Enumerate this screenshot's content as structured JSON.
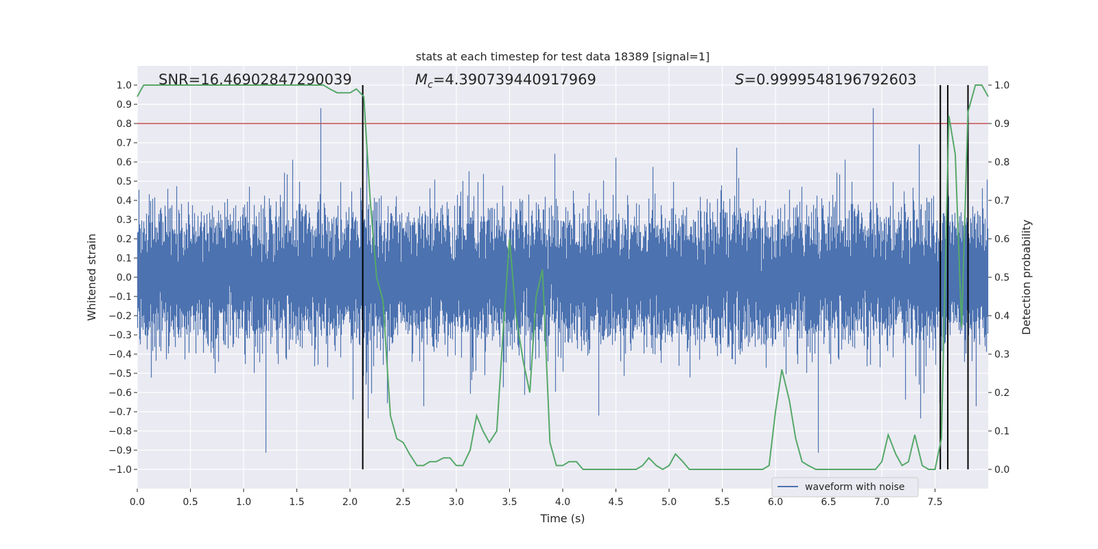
{
  "chart_data": {
    "type": "line",
    "title": "stats at each timestep for test data 18389 [signal=1]",
    "xlabel": "Time (s)",
    "ylabel_left": "Whitened strain",
    "ylabel_right": "Detection probability",
    "xlim": [
      0,
      8
    ],
    "ylim_left": [
      -1.1,
      1.1
    ],
    "ylim_right": [
      -0.05,
      1.05
    ],
    "x_ticks": [
      0.0,
      0.5,
      1.0,
      1.5,
      2.0,
      2.5,
      3.0,
      3.5,
      4.0,
      4.5,
      5.0,
      5.5,
      6.0,
      6.5,
      7.0,
      7.5
    ],
    "x_tick_labels": [
      "0.0",
      "0.5",
      "1.0",
      "1.5",
      "2.0",
      "2.5",
      "3.0",
      "3.5",
      "4.0",
      "4.5",
      "5.0",
      "5.5",
      "6.0",
      "6.5",
      "7.0",
      "7.5"
    ],
    "y_left_ticks": [
      1.0,
      0.9,
      0.8,
      0.7,
      0.6,
      0.5,
      0.4,
      0.3,
      0.2,
      0.1,
      0.0,
      -0.1,
      -0.2,
      -0.3,
      -0.4,
      -0.5,
      -0.6,
      -0.7,
      -0.8,
      -0.9,
      -1.0
    ],
    "y_left_tick_labels": [
      "1.0",
      "0.9",
      "0.8",
      "0.7",
      "0.6",
      "0.5",
      "0.4",
      "0.3",
      "0.2",
      "0.1",
      "0.0",
      "−0.1",
      "−0.2",
      "−0.3",
      "−0.4",
      "−0.5",
      "−0.6",
      "−0.7",
      "−0.8",
      "−0.9",
      "−1.0"
    ],
    "y_right_ticks": [
      1.0,
      0.9,
      0.8,
      0.7,
      0.6,
      0.5,
      0.4,
      0.3,
      0.2,
      0.1,
      0.0
    ],
    "y_right_tick_labels": [
      "1.0",
      "0.9",
      "0.8",
      "0.7",
      "0.6",
      "0.5",
      "0.4",
      "0.3",
      "0.2",
      "0.1",
      "0.0"
    ],
    "annotations": {
      "snr": "SNR=16.46902847290039",
      "mc_symbol": "M",
      "mc_subscript": "c",
      "mc_value": "=4.390739440917969",
      "s_symbol": "S",
      "s_value": "=0.9999548196792603"
    },
    "threshold_line": {
      "y": 0.8,
      "color": "#c44e52"
    },
    "vertical_lines": [
      2.12,
      7.55,
      7.62,
      7.81
    ],
    "waveform": {
      "name": "waveform with noise",
      "color": "#4c72b0",
      "sample_rate": 2048,
      "duration": 8,
      "description_envelope": "noise-like strain filling about -0.45..0.45 with spikes up to about 0.88 and down to -0.99"
    },
    "probability": {
      "name": "detection probability",
      "color": "#55a868",
      "x": [
        0.0,
        0.06,
        0.13,
        0.19,
        0.25,
        0.31,
        0.38,
        0.44,
        0.5,
        0.56,
        0.63,
        0.69,
        0.75,
        0.81,
        0.88,
        0.94,
        1.0,
        1.06,
        1.13,
        1.19,
        1.25,
        1.31,
        1.38,
        1.44,
        1.5,
        1.56,
        1.63,
        1.69,
        1.75,
        1.81,
        1.88,
        1.94,
        2.0,
        2.06,
        2.13,
        2.19,
        2.25,
        2.31,
        2.38,
        2.44,
        2.5,
        2.56,
        2.63,
        2.69,
        2.75,
        2.81,
        2.88,
        2.94,
        3.0,
        3.06,
        3.13,
        3.19,
        3.25,
        3.31,
        3.38,
        3.44,
        3.5,
        3.56,
        3.63,
        3.69,
        3.75,
        3.81,
        3.88,
        3.94,
        4.0,
        4.06,
        4.13,
        4.19,
        4.25,
        4.31,
        4.38,
        4.44,
        4.5,
        4.56,
        4.63,
        4.69,
        4.75,
        4.81,
        4.88,
        4.94,
        5.0,
        5.06,
        5.13,
        5.19,
        5.25,
        5.31,
        5.38,
        5.44,
        5.5,
        5.56,
        5.63,
        5.69,
        5.75,
        5.81,
        5.88,
        5.94,
        6.0,
        6.06,
        6.13,
        6.19,
        6.25,
        6.31,
        6.38,
        6.44,
        6.5,
        6.56,
        6.63,
        6.69,
        6.75,
        6.81,
        6.88,
        6.94,
        7.0,
        7.06,
        7.13,
        7.19,
        7.25,
        7.31,
        7.38,
        7.44,
        7.5,
        7.56,
        7.63,
        7.69,
        7.75,
        7.81,
        7.88,
        7.94,
        8.0
      ],
      "y": [
        0.97,
        1.0,
        1.0,
        1.0,
        1.0,
        1.0,
        1.0,
        1.0,
        1.0,
        1.0,
        1.0,
        1.0,
        1.0,
        1.0,
        1.0,
        1.0,
        1.0,
        1.0,
        1.0,
        1.0,
        1.0,
        1.0,
        1.0,
        1.0,
        1.0,
        1.0,
        1.0,
        1.0,
        1.0,
        0.99,
        0.98,
        0.98,
        0.98,
        0.99,
        0.97,
        0.7,
        0.5,
        0.44,
        0.14,
        0.08,
        0.07,
        0.04,
        0.01,
        0.01,
        0.02,
        0.02,
        0.03,
        0.03,
        0.01,
        0.01,
        0.05,
        0.14,
        0.1,
        0.07,
        0.1,
        0.36,
        0.6,
        0.4,
        0.28,
        0.2,
        0.45,
        0.52,
        0.07,
        0.01,
        0.01,
        0.02,
        0.02,
        0.0,
        0.0,
        0.0,
        0.0,
        0.0,
        0.0,
        0.0,
        0.0,
        0.0,
        0.01,
        0.03,
        0.01,
        0.0,
        0.01,
        0.04,
        0.02,
        0.0,
        0.0,
        0.0,
        0.0,
        0.0,
        0.0,
        0.0,
        0.0,
        0.0,
        0.0,
        0.0,
        0.0,
        0.01,
        0.15,
        0.26,
        0.18,
        0.08,
        0.02,
        0.01,
        0.0,
        0.0,
        0.0,
        0.0,
        0.0,
        0.0,
        0.0,
        0.0,
        0.0,
        0.0,
        0.02,
        0.09,
        0.04,
        0.01,
        0.02,
        0.09,
        0.01,
        0.0,
        0.0,
        0.08,
        0.92,
        0.82,
        0.37,
        0.93,
        1.0,
        1.0,
        0.97
      ]
    }
  },
  "legend": {
    "label": "waveform with noise"
  }
}
